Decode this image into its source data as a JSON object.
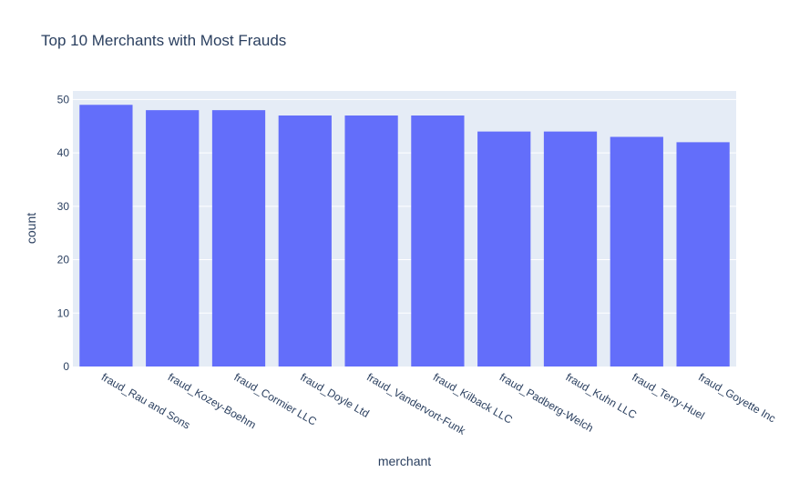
{
  "chart_data": {
    "type": "bar",
    "title": "Top 10 Merchants with Most Frauds",
    "xlabel": "merchant",
    "ylabel": "count",
    "categories": [
      "fraud_Rau and Sons",
      "fraud_Kozey-Boehm",
      "fraud_Cormier LLC",
      "fraud_Doyle Ltd",
      "fraud_Vandervort-Funk",
      "fraud_Kilback LLC",
      "fraud_Padberg-Welch",
      "fraud_Kuhn LLC",
      "fraud_Terry-Huel",
      "fraud_Goyette Inc"
    ],
    "values": [
      49,
      48,
      48,
      47,
      47,
      47,
      44,
      44,
      43,
      42
    ],
    "ylim": [
      0,
      51.6
    ],
    "yticks": [
      0,
      10,
      20,
      30,
      40,
      50
    ],
    "grid": true,
    "colors": {
      "bar": "#636efa",
      "plot_bg": "#e5ecf6",
      "grid": "#ffffff",
      "text": "#2a3f5f"
    }
  }
}
